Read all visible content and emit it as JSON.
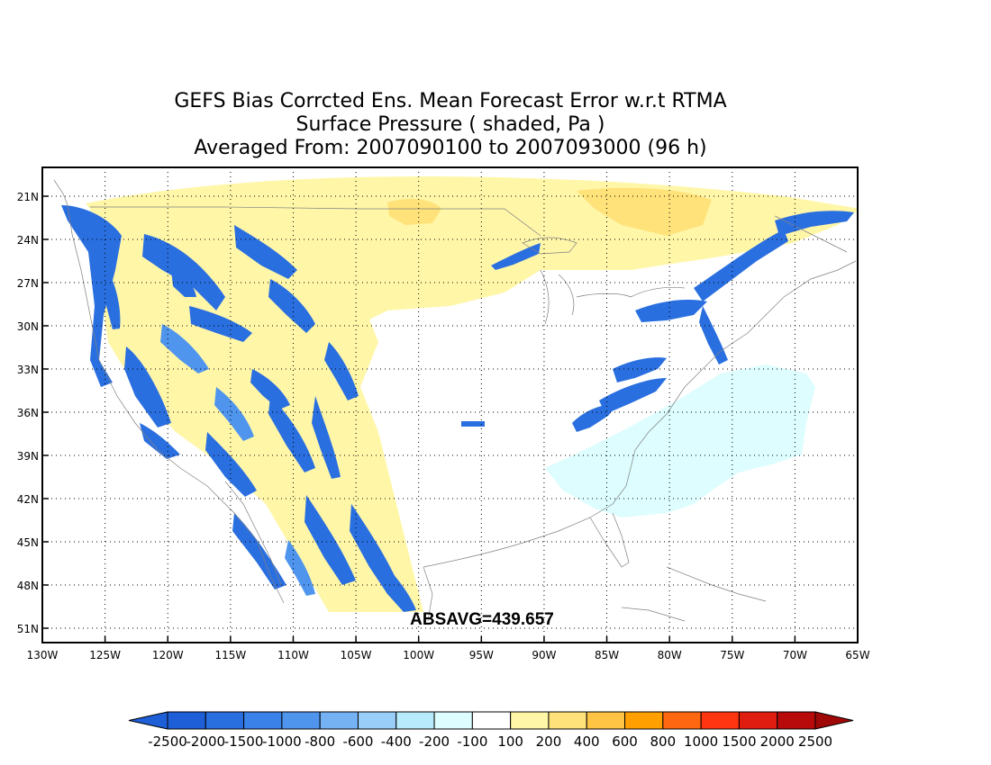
{
  "title_lines": [
    "GEFS Bias Corrcted Ens. Mean Forecast Error w.r.t RTMA",
    "Surface Pressure ( shaded, Pa )",
    "Averaged From: 2007090100 to 2007093000 (96 h)"
  ],
  "annotation": "ABSAVG=439.657",
  "lat_labels": [
    "51N",
    "48N",
    "45N",
    "42N",
    "39N",
    "36N",
    "33N",
    "30N",
    "27N",
    "24N",
    "21N"
  ],
  "lon_labels": [
    "130W",
    "125W",
    "120W",
    "115W",
    "110W",
    "105W",
    "100W",
    "95W",
    "90W",
    "85W",
    "80W",
    "75W",
    "70W",
    "65W"
  ],
  "colorbar": {
    "labels": [
      "-2500",
      "-2000",
      "-1500",
      "-1000",
      "-800",
      "-600",
      "-400",
      "-200",
      "-100",
      "100",
      "200",
      "400",
      "600",
      "800",
      "1000",
      "1500",
      "2000",
      "2500"
    ],
    "colors": [
      "#1e5fd8",
      "#2a6fe0",
      "#3a82ea",
      "#4f95ee",
      "#74b2f4",
      "#98cef8",
      "#b8ecfc",
      "#ddfdfe",
      "#ffffff",
      "#fff6a8",
      "#ffe27a",
      "#ffc444",
      "#ffa000",
      "#ff6810",
      "#ff3410",
      "#e01c10",
      "#b80a0a"
    ],
    "low_color": "#1e5fd8",
    "high_color": "#a00808"
  },
  "chart_data": {
    "type": "heatmap",
    "title": "GEFS Bias Corrcted Ens. Mean Forecast Error w.r.t RTMA",
    "variable": "Surface Pressure ( shaded, Pa )",
    "period": "Averaged From: 2007090100 to 2007093000 (96 h)",
    "x": {
      "units": "longitude",
      "range": [
        -130,
        -65
      ],
      "ticks": [
        -130,
        -125,
        -120,
        -115,
        -110,
        -105,
        -100,
        -95,
        -90,
        -85,
        -80,
        -75,
        -70,
        -65
      ]
    },
    "y": {
      "units": "latitude",
      "range": [
        20,
        53
      ],
      "ticks": [
        21,
        24,
        27,
        30,
        33,
        36,
        39,
        42,
        45,
        48,
        51
      ]
    },
    "levels": [
      -2500,
      -2000,
      -1500,
      -1000,
      -800,
      -600,
      -400,
      -200,
      -100,
      100,
      200,
      400,
      600,
      800,
      1000,
      1500,
      2000,
      2500
    ],
    "absavg": 439.657,
    "grid": true
  }
}
